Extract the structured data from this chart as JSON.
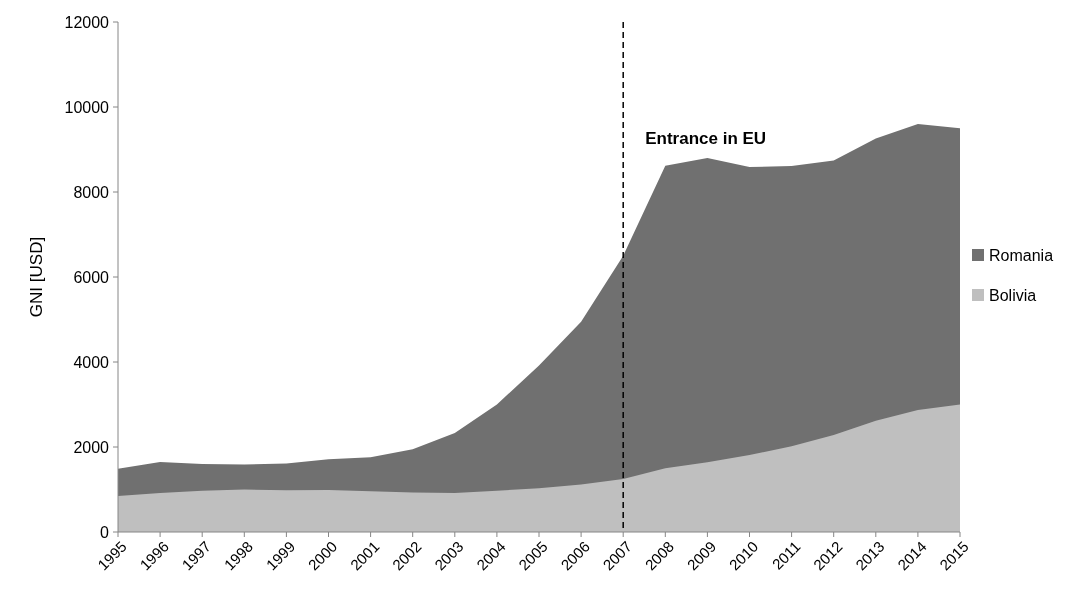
{
  "chart_data": {
    "type": "area",
    "ylabel": "GNI [USD]",
    "categories": [
      "1995",
      "1996",
      "1997",
      "1998",
      "1999",
      "2000",
      "2001",
      "2002",
      "2003",
      "2004",
      "2005",
      "2006",
      "2007",
      "2008",
      "2009",
      "2010",
      "2011",
      "2012",
      "2013",
      "2014",
      "2015"
    ],
    "series": [
      {
        "name": "Romania",
        "color": "#707070",
        "values": [
          1490,
          1650,
          1600,
          1590,
          1610,
          1710,
          1760,
          1950,
          2330,
          3000,
          3920,
          4950,
          6500,
          8620,
          8800,
          8590,
          8610,
          8740,
          9260,
          9600,
          9500
        ]
      },
      {
        "name": "Bolivia",
        "color": "#bfbfbf",
        "values": [
          850,
          920,
          970,
          1000,
          980,
          990,
          960,
          930,
          920,
          970,
          1030,
          1120,
          1250,
          1500,
          1640,
          1810,
          2020,
          2280,
          2620,
          2870,
          3000
        ]
      }
    ],
    "ylim": [
      0,
      12000
    ],
    "yticks": [
      0,
      2000,
      4000,
      6000,
      8000,
      10000,
      12000
    ],
    "ref_lines": [
      {
        "axis": "x",
        "value": "2007",
        "label": "Entrance in EU",
        "line_style": "dashed",
        "color": "#000000"
      }
    ],
    "legend": "right",
    "grid": false
  }
}
